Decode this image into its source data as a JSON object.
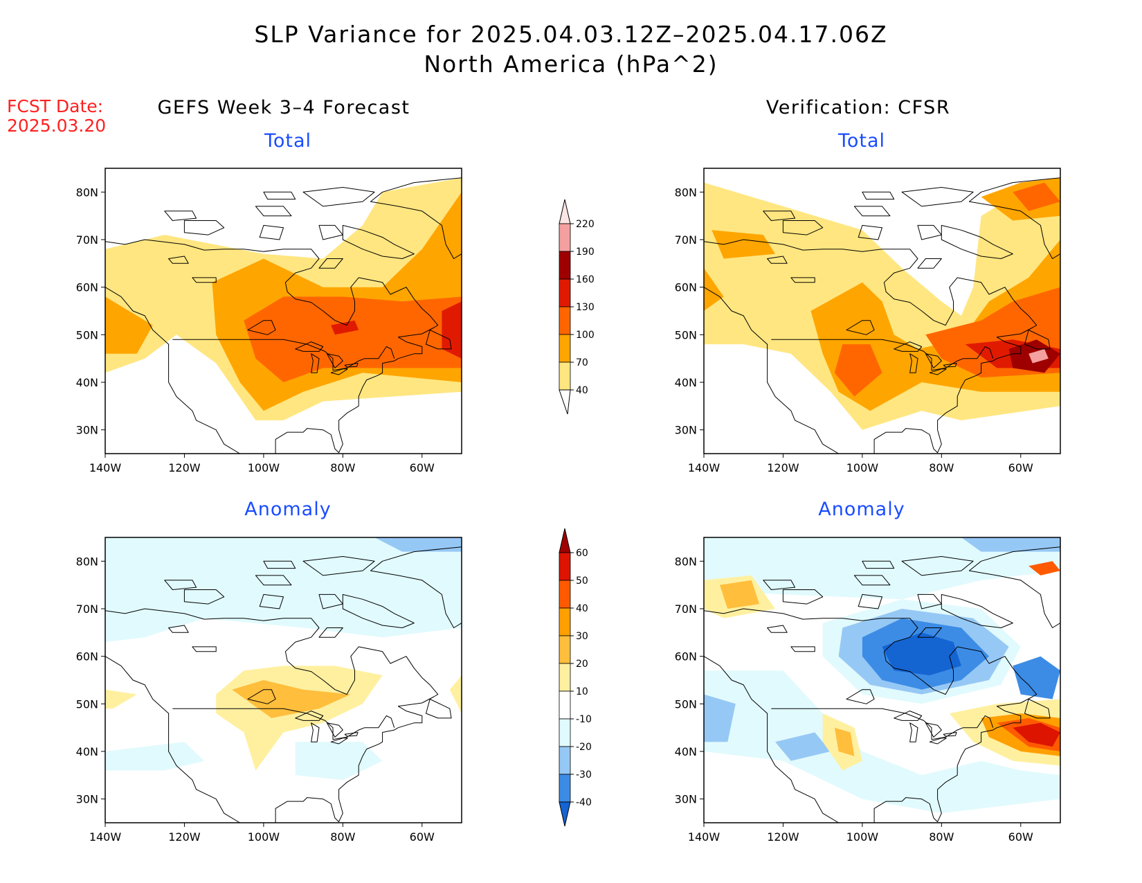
{
  "title": {
    "line1": "SLP Variance for 2025.04.03.12Z–2025.04.17.06Z",
    "line2": "North America (hPa^2)"
  },
  "fcst_date": {
    "label": "FCST Date:",
    "value": "2025.03.20"
  },
  "columns": {
    "left": "GEFS Week 3–4 Forecast",
    "right": "Verification: CFSR"
  },
  "panels": [
    {
      "id": "gefs-total",
      "title": "Total"
    },
    {
      "id": "cfsr-total",
      "title": "Total"
    },
    {
      "id": "gefs-anomaly",
      "title": "Anomaly"
    },
    {
      "id": "cfsr-anomaly",
      "title": "Anomaly"
    }
  ],
  "map_axes": {
    "lat_ticks": [
      "30N",
      "40N",
      "50N",
      "60N",
      "70N",
      "80N"
    ],
    "lon_ticks": [
      "140W",
      "120W",
      "100W",
      "80W",
      "60W"
    ],
    "lat_values": [
      30,
      40,
      50,
      60,
      70,
      80
    ],
    "lon_values": [
      -140,
      -120,
      -100,
      -80,
      -60
    ],
    "lat_range": [
      25,
      85
    ],
    "lon_range": [
      -140,
      -50
    ]
  },
  "total_colorbar": {
    "levels": [
      "40",
      "70",
      "100",
      "130",
      "160",
      "190",
      "220"
    ],
    "colors": [
      "#ffe680",
      "#ffa500",
      "#ff6600",
      "#e01a00",
      "#9e0000",
      "#f4a0a0",
      "#fde4e4"
    ],
    "extend": "top"
  },
  "anomaly_colorbar": {
    "levels": [
      "-40",
      "-30",
      "-20",
      "-10",
      "10",
      "20",
      "30",
      "40",
      "50",
      "60"
    ],
    "colors": [
      "#1464d2",
      "#3c8ce6",
      "#96c8f5",
      "#e1fafd",
      "#ffffff",
      "#fff0a0",
      "#ffbe3c",
      "#ffa000",
      "#ff5a00",
      "#dc1400",
      "#a00000"
    ],
    "extend": "both"
  },
  "colors": {
    "title_blue": "#1a4cff",
    "fcst_red": "#ff2020"
  }
}
